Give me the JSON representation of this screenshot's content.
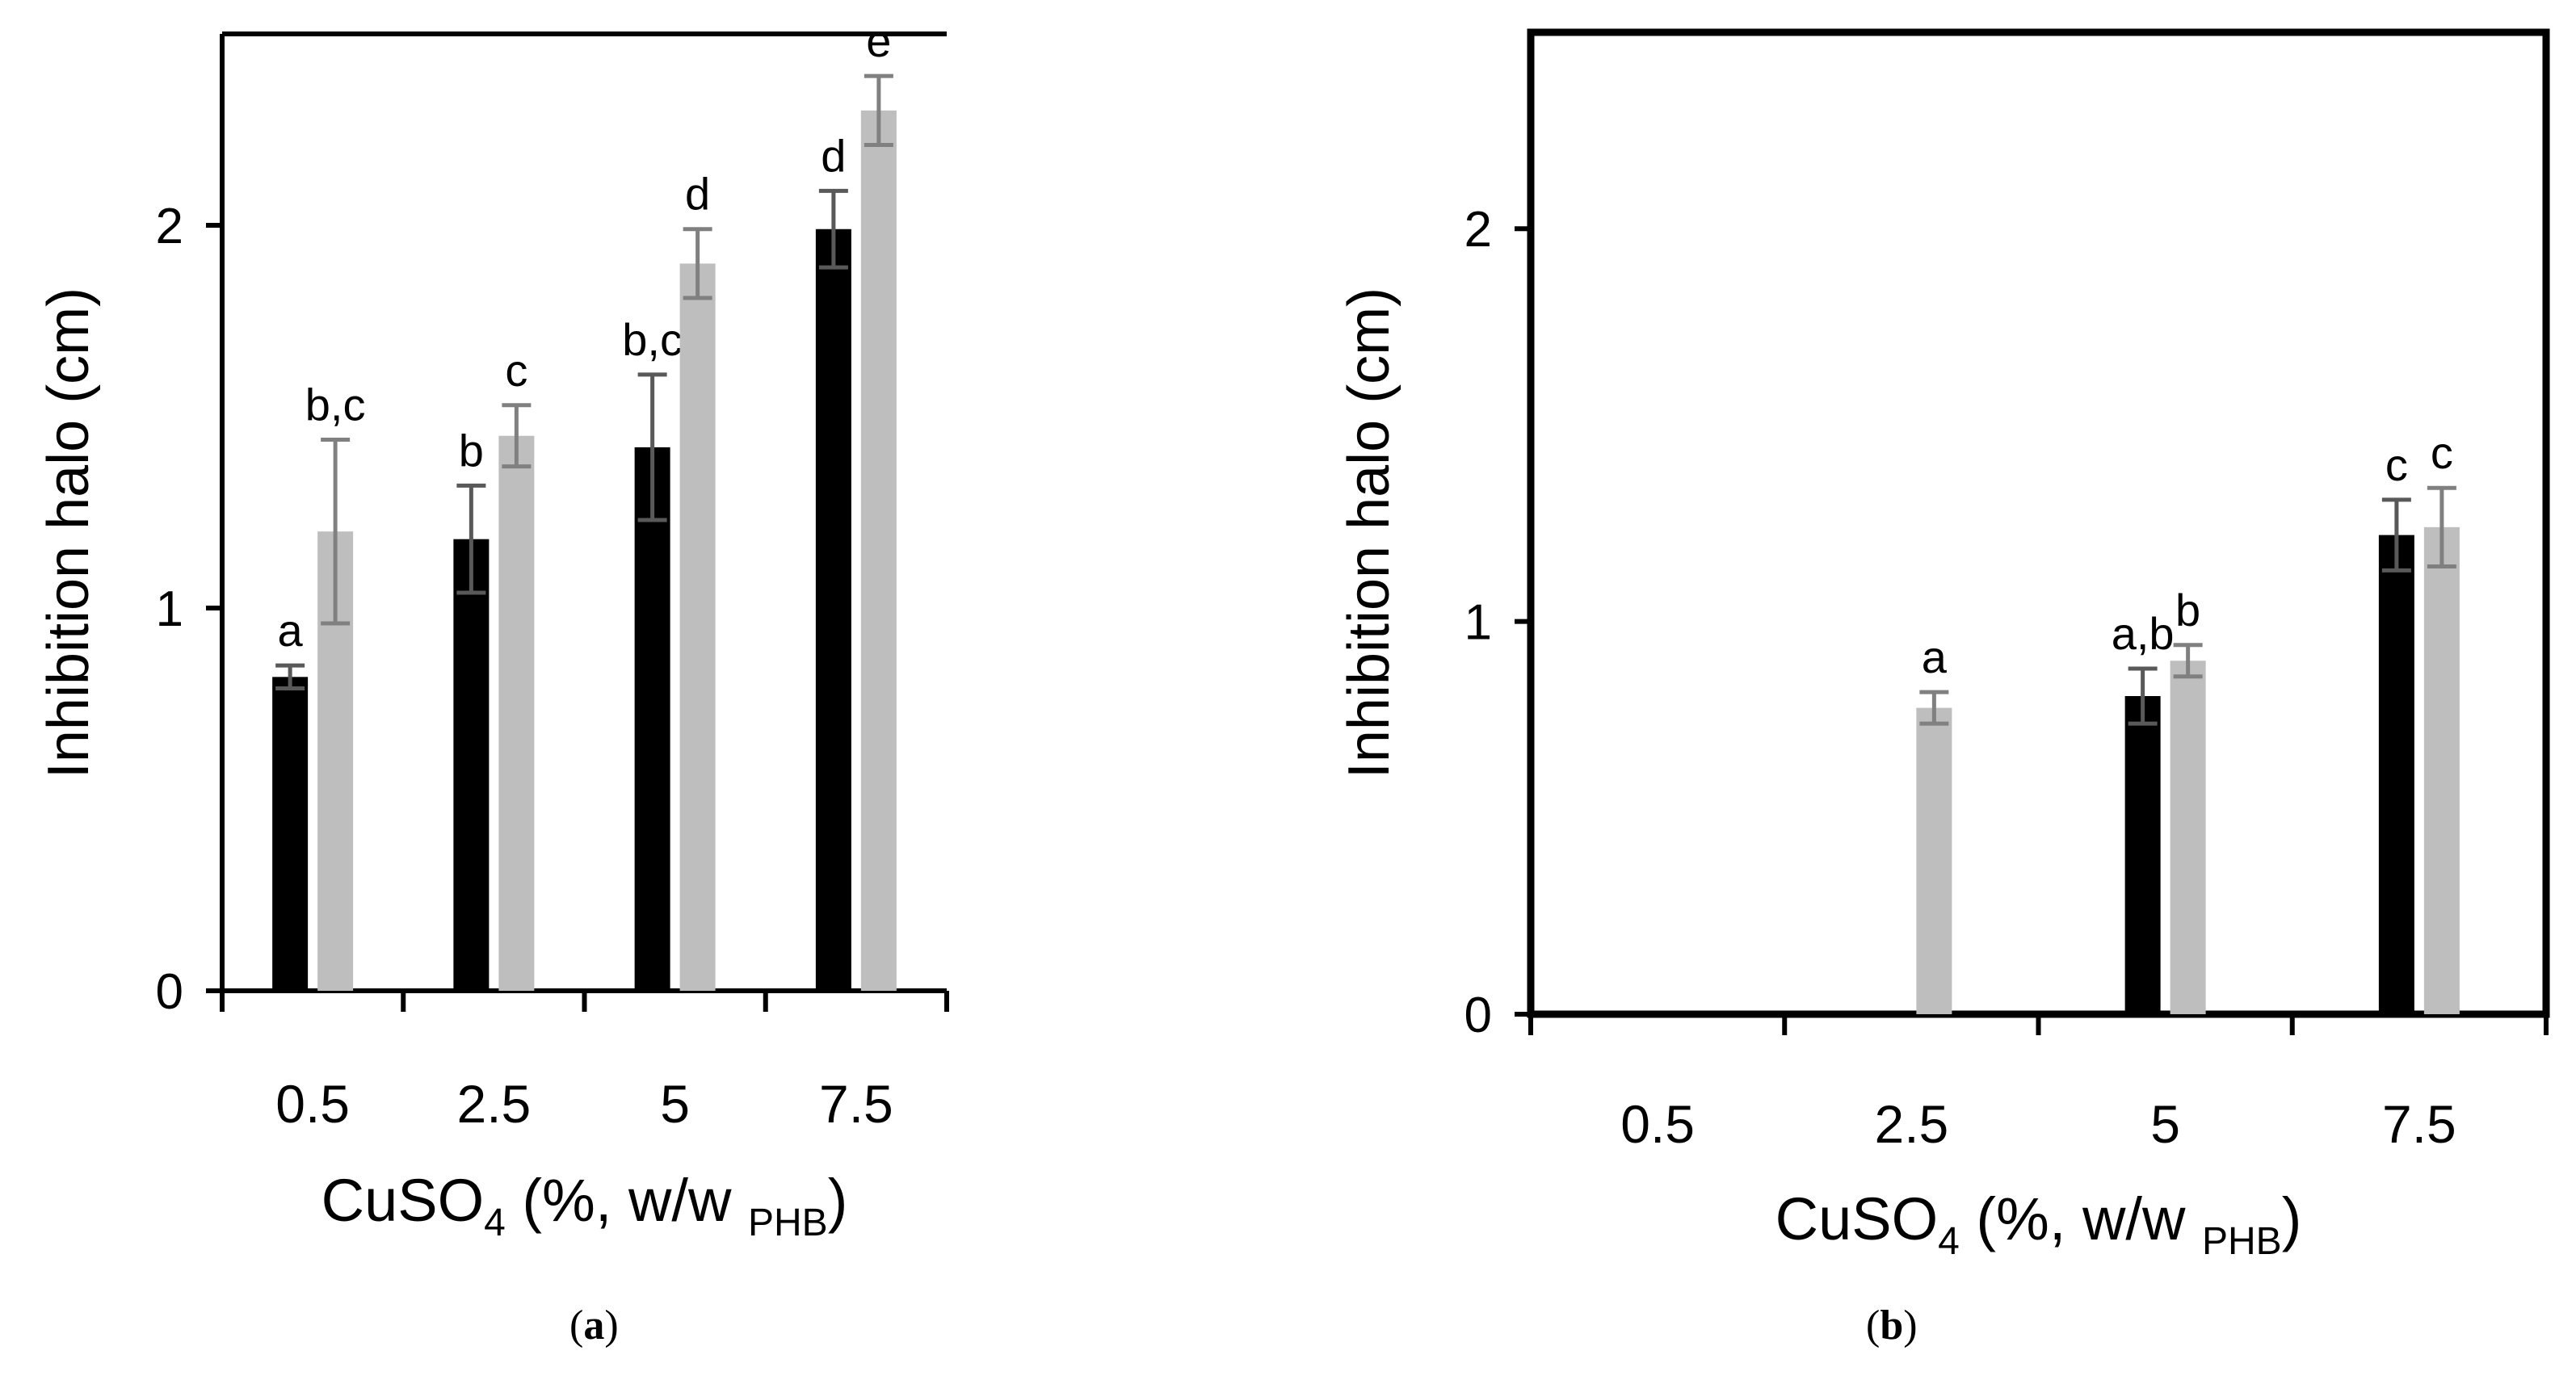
{
  "colors": {
    "series_dark": "#000000",
    "series_light": "#bebebe",
    "axis": "#000000",
    "error_bar_dark": "#595959",
    "error_bar_light": "#808080"
  },
  "chart_data": [
    {
      "panel": "(a)",
      "panel_letter": "a",
      "type": "bar",
      "categories": [
        "0.5",
        "2.5",
        "5",
        "7.5"
      ],
      "series": [
        {
          "name": "dark",
          "values": [
            0.82,
            1.18,
            1.42,
            1.99
          ],
          "errors": [
            0.03,
            0.14,
            0.19,
            0.1
          ],
          "labels": [
            "a",
            "b",
            "b,c",
            "d"
          ]
        },
        {
          "name": "light",
          "values": [
            1.2,
            1.45,
            1.9,
            2.3
          ],
          "errors": [
            0.24,
            0.08,
            0.09,
            0.09
          ],
          "labels": [
            "b,c",
            "c",
            "d",
            "e"
          ]
        }
      ],
      "xlabel_main": "CuSO",
      "xlabel_sub": "4",
      "xlabel_mid": " (%, w/w ",
      "xlabel_sub2": "PHB",
      "xlabel_end": ")",
      "ylabel": "Inhibition halo (cm)",
      "ylim": [
        0,
        2.5
      ],
      "yticks": [
        "0",
        "1",
        "2"
      ],
      "ytick_values": [
        0,
        1,
        2
      ]
    },
    {
      "panel": "(b)",
      "panel_letter": "b",
      "type": "bar",
      "categories": [
        "0.5",
        "2.5",
        "5",
        "7.5"
      ],
      "series": [
        {
          "name": "dark",
          "values": [
            0,
            0,
            0.81,
            1.22
          ],
          "errors": [
            0,
            0,
            0.07,
            0.09
          ],
          "labels": [
            "",
            "",
            "a,b",
            "c"
          ]
        },
        {
          "name": "light",
          "values": [
            0,
            0.78,
            0.9,
            1.24
          ],
          "errors": [
            0,
            0.04,
            0.04,
            0.1
          ],
          "labels": [
            "",
            "a",
            "b",
            "c"
          ]
        }
      ],
      "xlabel_main": "CuSO",
      "xlabel_sub": "4",
      "xlabel_mid": " (%, w/w ",
      "xlabel_sub2": "PHB",
      "xlabel_end": ")",
      "ylabel": "Inhibition halo (cm)",
      "ylim": [
        0,
        2.5
      ],
      "yticks": [
        "0",
        "1",
        "2"
      ],
      "ytick_values": [
        0,
        1,
        2
      ]
    }
  ]
}
